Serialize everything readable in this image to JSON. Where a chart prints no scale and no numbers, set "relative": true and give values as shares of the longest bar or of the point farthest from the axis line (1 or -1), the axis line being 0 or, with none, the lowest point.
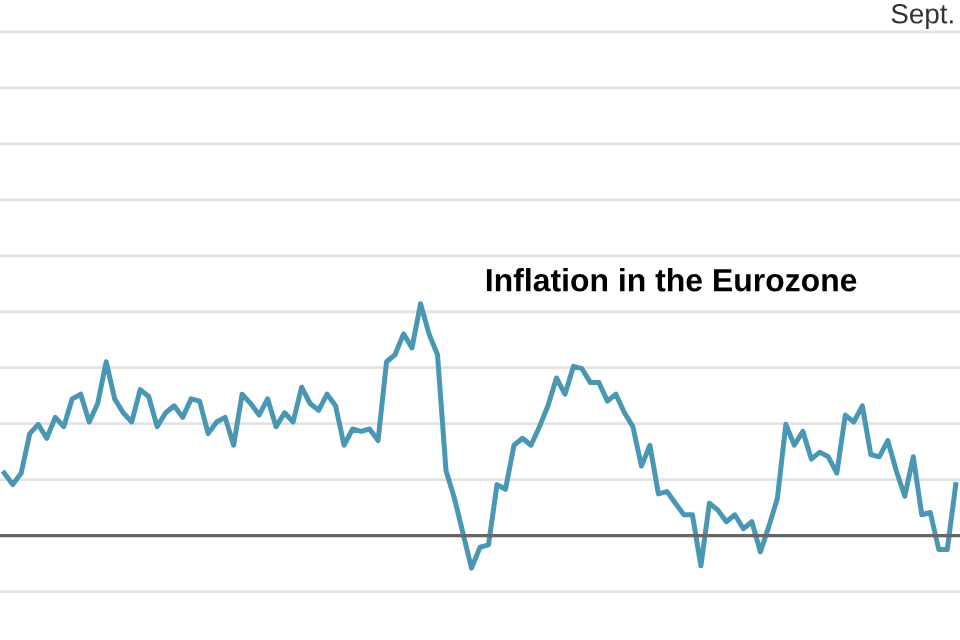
{
  "chart_data": {
    "type": "line",
    "title": "Inflation in the Eurozone",
    "annotations": [
      "Sept."
    ],
    "relative": true,
    "grid": "y",
    "legend": false,
    "marker": "none",
    "line_style": "solid",
    "categories": [
      null,
      null,
      null,
      null,
      null,
      null,
      null,
      null,
      null,
      null,
      null,
      null,
      null,
      null,
      null,
      null,
      null,
      null,
      null,
      null,
      null,
      null,
      null,
      null,
      null,
      null,
      null,
      null,
      null,
      null,
      null,
      null,
      null,
      null,
      null,
      null,
      null,
      null,
      null,
      null,
      null,
      null,
      null,
      null,
      null,
      null,
      null,
      null,
      null,
      null,
      null,
      null,
      null,
      null,
      null,
      null,
      null,
      null,
      null,
      null,
      null,
      null,
      null,
      null,
      null,
      null,
      null,
      null,
      null,
      null,
      null,
      null,
      null,
      null,
      null,
      null,
      null,
      null,
      null,
      null,
      null,
      null,
      null,
      null,
      null,
      null,
      null,
      null,
      null,
      null,
      null,
      null,
      null,
      null,
      null,
      null,
      null,
      null,
      null,
      null,
      null,
      null,
      null,
      null,
      null,
      null,
      null,
      null,
      null,
      null,
      null,
      null,
      null
    ],
    "series": [
      {
        "color": "#4a97b4",
        "values": [
          0.27,
          0.22,
          0.27,
          0.44,
          0.48,
          0.42,
          0.51,
          0.47,
          0.59,
          0.61,
          0.49,
          0.57,
          0.75,
          0.59,
          0.53,
          0.49,
          0.63,
          0.6,
          0.47,
          0.53,
          0.56,
          0.51,
          0.59,
          0.58,
          0.44,
          0.49,
          0.51,
          0.39,
          0.61,
          0.57,
          0.52,
          0.59,
          0.47,
          0.53,
          0.49,
          0.64,
          0.57,
          0.54,
          0.61,
          0.56,
          0.39,
          0.46,
          0.45,
          0.46,
          0.41,
          0.75,
          0.78,
          0.87,
          0.81,
          1.0,
          0.87,
          0.78,
          0.28,
          0.16,
          0.01,
          -0.14,
          -0.05,
          -0.04,
          0.22,
          0.2,
          0.39,
          0.42,
          0.39,
          0.47,
          0.56,
          0.68,
          0.61,
          0.73,
          0.72,
          0.66,
          0.66,
          0.58,
          0.61,
          0.53,
          0.47,
          0.3,
          0.39,
          0.18,
          0.19,
          0.14,
          0.09,
          0.09,
          -0.13,
          0.14,
          0.11,
          0.06,
          0.09,
          0.03,
          0.06,
          -0.07,
          0.04,
          0.16,
          0.48,
          0.39,
          0.45,
          0.33,
          0.36,
          0.34,
          0.27,
          0.52,
          0.49,
          0.56,
          0.35,
          0.34,
          0.41,
          0.28,
          0.17,
          0.34,
          0.09,
          0.1,
          -0.06,
          -0.06,
          0.22
        ]
      }
    ]
  }
}
